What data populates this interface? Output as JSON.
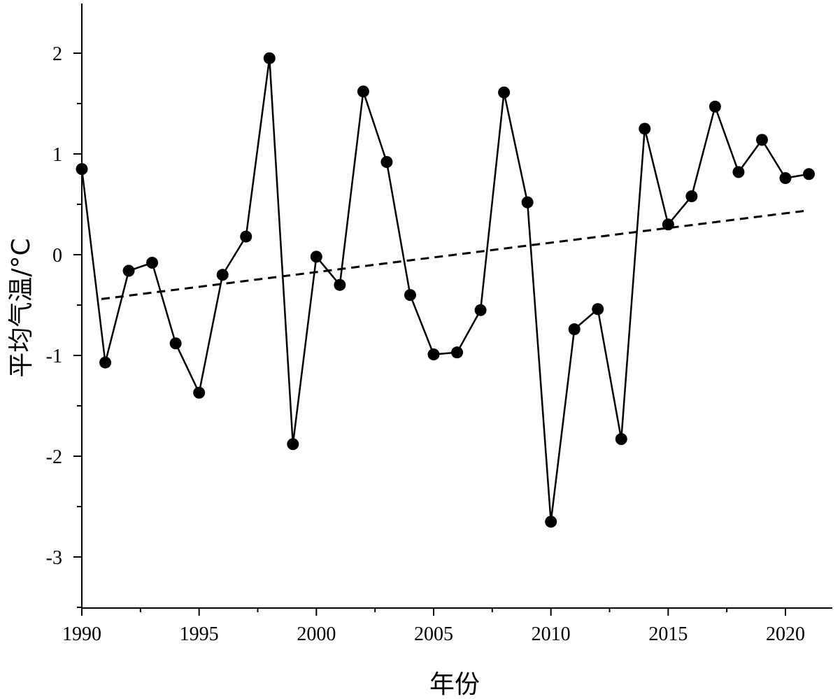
{
  "chart_data": {
    "type": "line",
    "xlabel": "年份",
    "ylabel": "平均气温/°C",
    "xlim": [
      1990,
      2022
    ],
    "ylim": [
      -3.5,
      2.5
    ],
    "x_major_ticks": [
      1990,
      1995,
      2000,
      2005,
      2010,
      2015,
      2020
    ],
    "x_tick_labels": [
      "1990",
      "1995",
      "2000",
      "2005",
      "2010",
      "2015",
      "2020"
    ],
    "y_major_ticks": [
      2,
      1,
      0,
      -1,
      -2,
      -3
    ],
    "y_tick_labels": [
      "2",
      "1",
      "0",
      "-1",
      "-2",
      "-3"
    ],
    "grid": false,
    "series": [
      {
        "style": "solid line with filled circle markers",
        "color": "#000000",
        "x": [
          1990,
          1991,
          1992,
          1993,
          1994,
          1995,
          1996,
          1997,
          1998,
          1999,
          2000,
          2001,
          2002,
          2003,
          2004,
          2005,
          2006,
          2007,
          2008,
          2009,
          2010,
          2011,
          2012,
          2013,
          2014,
          2015,
          2016,
          2017,
          2018,
          2019,
          2020,
          2021
        ],
        "values": [
          0.85,
          -1.07,
          -0.16,
          -0.08,
          -0.88,
          -1.37,
          -0.2,
          0.18,
          1.95,
          -1.88,
          -0.02,
          -0.3,
          1.62,
          0.92,
          -0.4,
          -0.99,
          -0.97,
          -0.55,
          1.61,
          0.52,
          -2.65,
          -0.74,
          -0.54,
          -1.83,
          1.25,
          0.3,
          0.58,
          1.47,
          0.82,
          1.14,
          0.76,
          0.8
        ]
      },
      {
        "style": "dashed trend line",
        "color": "#000000",
        "x": [
          1990,
          2021
        ],
        "values": [
          -0.44,
          0.44
        ]
      }
    ]
  }
}
